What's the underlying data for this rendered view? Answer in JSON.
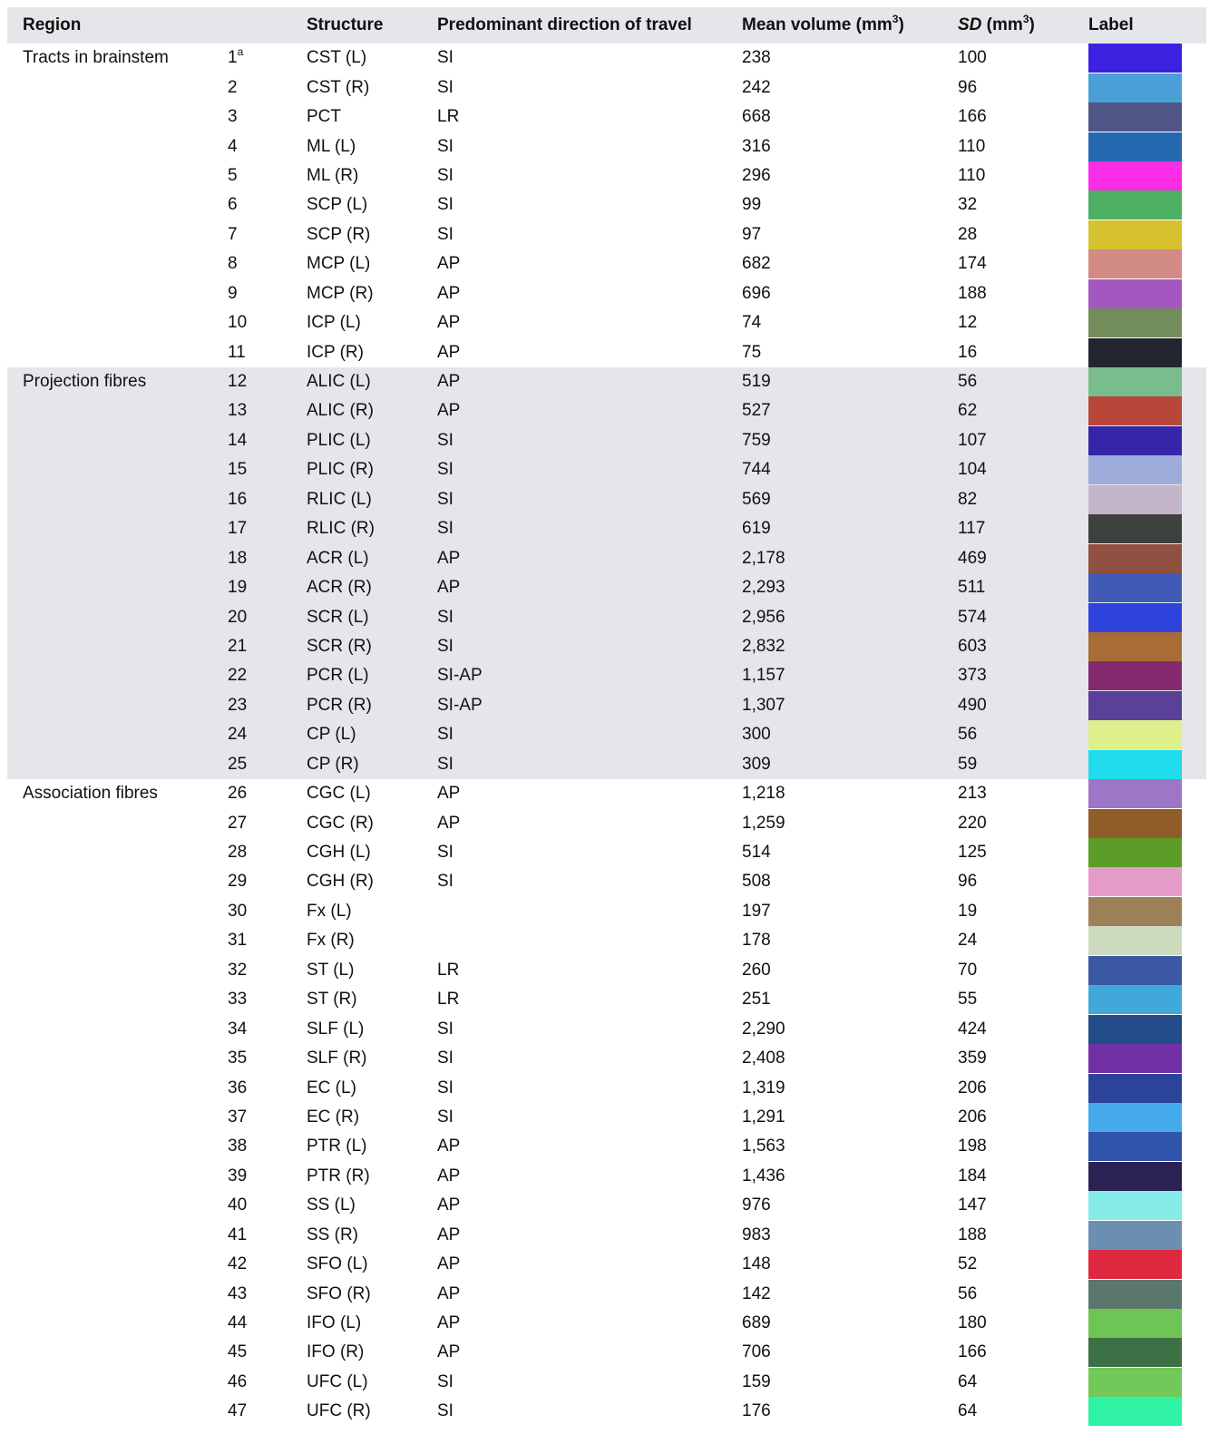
{
  "header": {
    "region": "Region",
    "structure": "Structure",
    "direction": "Predominant direction of travel",
    "mean_prefix": "Mean volume (mm",
    "mean_sup": "3",
    "mean_suffix": ")",
    "sd_italic": "SD",
    "sd_prefix": " (mm",
    "sd_sup": "3",
    "sd_suffix": ")",
    "label": "Label"
  },
  "rows": [
    {
      "region": "Tracts in brainstem",
      "num": "1",
      "sup": "a",
      "structure": "CST (L)",
      "direction": "SI",
      "mean": "238",
      "sd": "100",
      "color": "#3b22e0",
      "shaded": false
    },
    {
      "region": "",
      "num": "2",
      "sup": "",
      "structure": "CST (R)",
      "direction": "SI",
      "mean": "242",
      "sd": "96",
      "color": "#4aa0d6",
      "shaded": false
    },
    {
      "region": "",
      "num": "3",
      "sup": "",
      "structure": "PCT",
      "direction": "LR",
      "mean": "668",
      "sd": "166",
      "color": "#4f5585",
      "shaded": false
    },
    {
      "region": "",
      "num": "4",
      "sup": "",
      "structure": "ML (L)",
      "direction": "SI",
      "mean": "316",
      "sd": "110",
      "color": "#2468b0",
      "shaded": false
    },
    {
      "region": "",
      "num": "5",
      "sup": "",
      "structure": "ML (R)",
      "direction": "SI",
      "mean": "296",
      "sd": "110",
      "color": "#fb2ce6",
      "shaded": false
    },
    {
      "region": "",
      "num": "6",
      "sup": "",
      "structure": "SCP (L)",
      "direction": "SI",
      "mean": "99",
      "sd": "32",
      "color": "#4db062",
      "shaded": false
    },
    {
      "region": "",
      "num": "7",
      "sup": "",
      "structure": "SCP (R)",
      "direction": "SI",
      "mean": "97",
      "sd": "28",
      "color": "#d6c22e",
      "shaded": false
    },
    {
      "region": "",
      "num": "8",
      "sup": "",
      "structure": "MCP (L)",
      "direction": "AP",
      "mean": "682",
      "sd": "174",
      "color": "#d18a84",
      "shaded": false
    },
    {
      "region": "",
      "num": "9",
      "sup": "",
      "structure": "MCP (R)",
      "direction": "AP",
      "mean": "696",
      "sd": "188",
      "color": "#a457c1",
      "shaded": false
    },
    {
      "region": "",
      "num": "10",
      "sup": "",
      "structure": "ICP (L)",
      "direction": "AP",
      "mean": "74",
      "sd": "12",
      "color": "#728c5c",
      "shaded": false
    },
    {
      "region": "",
      "num": "11",
      "sup": "",
      "structure": "ICP (R)",
      "direction": "AP",
      "mean": "75",
      "sd": "16",
      "color": "#232631",
      "shaded": false
    },
    {
      "region": "Projection fibres",
      "num": "12",
      "sup": "",
      "structure": "ALIC (L)",
      "direction": "AP",
      "mean": "519",
      "sd": "56",
      "color": "#79bc8d",
      "shaded": true
    },
    {
      "region": "",
      "num": "13",
      "sup": "",
      "structure": "ALIC (R)",
      "direction": "AP",
      "mean": "527",
      "sd": "62",
      "color": "#b9463b",
      "shaded": true
    },
    {
      "region": "",
      "num": "14",
      "sup": "",
      "structure": "PLIC (L)",
      "direction": "SI",
      "mean": "759",
      "sd": "107",
      "color": "#3625a8",
      "shaded": true
    },
    {
      "region": "",
      "num": "15",
      "sup": "",
      "structure": "PLIC (R)",
      "direction": "SI",
      "mean": "744",
      "sd": "104",
      "color": "#9dacdb",
      "shaded": true
    },
    {
      "region": "",
      "num": "16",
      "sup": "",
      "structure": "RLIC (L)",
      "direction": "SI",
      "mean": "569",
      "sd": "82",
      "color": "#c4b5c9",
      "shaded": true
    },
    {
      "region": "",
      "num": "17",
      "sup": "",
      "structure": "RLIC (R)",
      "direction": "SI",
      "mean": "619",
      "sd": "117",
      "color": "#3d4140",
      "shaded": true
    },
    {
      "region": "",
      "num": "18",
      "sup": "",
      "structure": "ACR (L)",
      "direction": "AP",
      "mean": "2,178",
      "sd": "469",
      "color": "#915040",
      "shaded": true
    },
    {
      "region": "",
      "num": "19",
      "sup": "",
      "structure": "ACR (R)",
      "direction": "AP",
      "mean": "2,293",
      "sd": "511",
      "color": "#3f5ab7",
      "shaded": true
    },
    {
      "region": "",
      "num": "20",
      "sup": "",
      "structure": "SCR (L)",
      "direction": "SI",
      "mean": "2,956",
      "sd": "574",
      "color": "#2d43dc",
      "shaded": true
    },
    {
      "region": "",
      "num": "21",
      "sup": "",
      "structure": "SCR (R)",
      "direction": "SI",
      "mean": "2,832",
      "sd": "603",
      "color": "#a86c37",
      "shaded": true
    },
    {
      "region": "",
      "num": "22",
      "sup": "",
      "structure": "PCR (L)",
      "direction": "SI-AP",
      "mean": "1,157",
      "sd": "373",
      "color": "#862a6f",
      "shaded": true
    },
    {
      "region": "",
      "num": "23",
      "sup": "",
      "structure": "PCR (R)",
      "direction": "SI-AP",
      "mean": "1,307",
      "sd": "490",
      "color": "#5a4099",
      "shaded": true
    },
    {
      "region": "",
      "num": "24",
      "sup": "",
      "structure": "CP (L)",
      "direction": "SI",
      "mean": "300",
      "sd": "56",
      "color": "#ddf08c",
      "shaded": true
    },
    {
      "region": "",
      "num": "25",
      "sup": "",
      "structure": "CP (R)",
      "direction": "SI",
      "mean": "309",
      "sd": "59",
      "color": "#20dced",
      "shaded": true
    },
    {
      "region": "Association fibres",
      "num": "26",
      "sup": "",
      "structure": "CGC (L)",
      "direction": "AP",
      "mean": "1,218",
      "sd": "213",
      "color": "#9d77c6",
      "shaded": false
    },
    {
      "region": "",
      "num": "27",
      "sup": "",
      "structure": "CGC (R)",
      "direction": "AP",
      "mean": "1,259",
      "sd": "220",
      "color": "#8f5c2a",
      "shaded": false
    },
    {
      "region": "",
      "num": "28",
      "sup": "",
      "structure": "CGH (L)",
      "direction": "SI",
      "mean": "514",
      "sd": "125",
      "color": "#5b9d26",
      "shaded": false
    },
    {
      "region": "",
      "num": "29",
      "sup": "",
      "structure": "CGH (R)",
      "direction": "SI",
      "mean": "508",
      "sd": "96",
      "color": "#e59bc7",
      "shaded": false
    },
    {
      "region": "",
      "num": "30",
      "sup": "",
      "structure": "Fx (L)",
      "direction": "",
      "mean": "197",
      "sd": "19",
      "color": "#9e8058",
      "shaded": false
    },
    {
      "region": "",
      "num": "31",
      "sup": "",
      "structure": "Fx (R)",
      "direction": "",
      "mean": "178",
      "sd": "24",
      "color": "#ccdabd",
      "shaded": false
    },
    {
      "region": "",
      "num": "32",
      "sup": "",
      "structure": "ST (L)",
      "direction": "LR",
      "mean": "260",
      "sd": "70",
      "color": "#3b59a2",
      "shaded": false
    },
    {
      "region": "",
      "num": "33",
      "sup": "",
      "structure": "ST (R)",
      "direction": "LR",
      "mean": "251",
      "sd": "55",
      "color": "#41a9d9",
      "shaded": false
    },
    {
      "region": "",
      "num": "34",
      "sup": "",
      "structure": "SLF (L)",
      "direction": "SI",
      "mean": "2,290",
      "sd": "424",
      "color": "#234b89",
      "shaded": false
    },
    {
      "region": "",
      "num": "35",
      "sup": "",
      "structure": "SLF (R)",
      "direction": "SI",
      "mean": "2,408",
      "sd": "359",
      "color": "#7230a6",
      "shaded": false
    },
    {
      "region": "",
      "num": "36",
      "sup": "",
      "structure": "EC (L)",
      "direction": "SI",
      "mean": "1,319",
      "sd": "206",
      "color": "#2c439a",
      "shaded": false
    },
    {
      "region": "",
      "num": "37",
      "sup": "",
      "structure": "EC (R)",
      "direction": "SI",
      "mean": "1,291",
      "sd": "206",
      "color": "#44aaeb",
      "shaded": false
    },
    {
      "region": "",
      "num": "38",
      "sup": "",
      "structure": "PTR (L)",
      "direction": "AP",
      "mean": "1,563",
      "sd": "198",
      "color": "#3054aa",
      "shaded": false
    },
    {
      "region": "",
      "num": "39",
      "sup": "",
      "structure": "PTR (R)",
      "direction": "AP",
      "mean": "1,436",
      "sd": "184",
      "color": "#2b2152",
      "shaded": false
    },
    {
      "region": "",
      "num": "40",
      "sup": "",
      "structure": "SS (L)",
      "direction": "AP",
      "mean": "976",
      "sd": "147",
      "color": "#85ece8",
      "shaded": false
    },
    {
      "region": "",
      "num": "41",
      "sup": "",
      "structure": "SS (R)",
      "direction": "AP",
      "mean": "983",
      "sd": "188",
      "color": "#6b8fb0",
      "shaded": false
    },
    {
      "region": "",
      "num": "42",
      "sup": "",
      "structure": "SFO (L)",
      "direction": "AP",
      "mean": "148",
      "sd": "52",
      "color": "#de2941",
      "shaded": false
    },
    {
      "region": "",
      "num": "43",
      "sup": "",
      "structure": "SFO (R)",
      "direction": "AP",
      "mean": "142",
      "sd": "56",
      "color": "#5b776c",
      "shaded": false
    },
    {
      "region": "",
      "num": "44",
      "sup": "",
      "structure": "IFO (L)",
      "direction": "AP",
      "mean": "689",
      "sd": "180",
      "color": "#6fc456",
      "shaded": false
    },
    {
      "region": "",
      "num": "45",
      "sup": "",
      "structure": "IFO (R)",
      "direction": "AP",
      "mean": "706",
      "sd": "166",
      "color": "#3c7045",
      "shaded": false
    },
    {
      "region": "",
      "num": "46",
      "sup": "",
      "structure": "UFC (L)",
      "direction": "SI",
      "mean": "159",
      "sd": "64",
      "color": "#73c85a",
      "shaded": false
    },
    {
      "region": "",
      "num": "47",
      "sup": "",
      "structure": "UFC (R)",
      "direction": "SI",
      "mean": "176",
      "sd": "64",
      "color": "#30f2a4",
      "shaded": false
    }
  ]
}
